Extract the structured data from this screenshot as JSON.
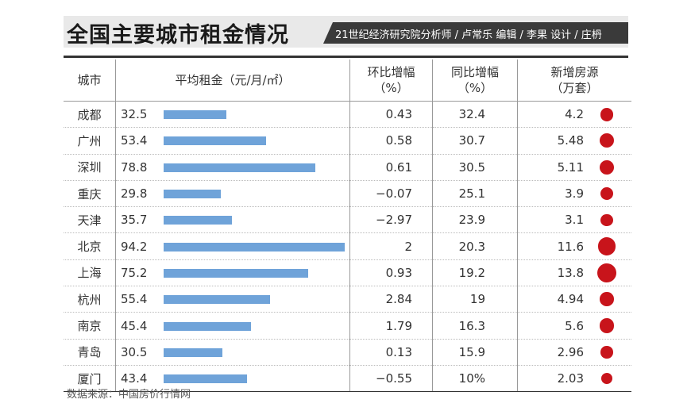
{
  "header": {
    "title": "全国主要城市租金情况",
    "credit": "21世纪经济研究院分析师 / 卢常乐   编辑 / 李果   设计 / 庄枬"
  },
  "columns": {
    "city": "城市",
    "rent": "平均租金（元/月/㎡）",
    "mom_line1": "环比增幅",
    "mom_line2": "（%）",
    "yoy_line1": "同比增幅",
    "yoy_line2": "（%）",
    "new_line1": "新增房源",
    "new_line2": "（万套）"
  },
  "chart_data": {
    "type": "table",
    "rows": [
      {
        "city": "成都",
        "rent": "32.5",
        "rent_num": 32.5,
        "mom": "0.43",
        "yoy": "32.4",
        "new": "4.2",
        "new_num": 4.2
      },
      {
        "city": "广州",
        "rent": "53.4",
        "rent_num": 53.4,
        "mom": "0.58",
        "yoy": "30.7",
        "new": "5.48",
        "new_num": 5.48
      },
      {
        "city": "深圳",
        "rent": "78.8",
        "rent_num": 78.8,
        "mom": "0.61",
        "yoy": "30.5",
        "new": "5.11",
        "new_num": 5.11
      },
      {
        "city": "重庆",
        "rent": "29.8",
        "rent_num": 29.8,
        "mom": "−0.07",
        "yoy": "25.1",
        "new": "3.9",
        "new_num": 3.9
      },
      {
        "city": "天津",
        "rent": "35.7",
        "rent_num": 35.7,
        "mom": "−2.97",
        "yoy": "23.9",
        "new": "3.1",
        "new_num": 3.1
      },
      {
        "city": "北京",
        "rent": "94.2",
        "rent_num": 94.2,
        "mom": "2",
        "yoy": "20.3",
        "new": "11.6",
        "new_num": 11.6
      },
      {
        "city": "上海",
        "rent": "75.2",
        "rent_num": 75.2,
        "mom": "0.93",
        "yoy": "19.2",
        "new": "13.8",
        "new_num": 13.8
      },
      {
        "city": "杭州",
        "rent": "55.4",
        "rent_num": 55.4,
        "mom": "2.84",
        "yoy": "19",
        "new": "4.94",
        "new_num": 4.94
      },
      {
        "city": "南京",
        "rent": "45.4",
        "rent_num": 45.4,
        "mom": "1.79",
        "yoy": "16.3",
        "new": "5.6",
        "new_num": 5.6
      },
      {
        "city": "青岛",
        "rent": "30.5",
        "rent_num": 30.5,
        "mom": "0.13",
        "yoy": "15.9",
        "new": "2.96",
        "new_num": 2.96
      },
      {
        "city": "厦门",
        "rent": "43.4",
        "rent_num": 43.4,
        "mom": "−0.55",
        "yoy": "10%",
        "new": "2.03",
        "new_num": 2.03
      }
    ],
    "bar_color": "#6fa3d9",
    "dot_color": "#c8141b"
  },
  "footer": {
    "source": "数据来源：中国房价行情网"
  }
}
